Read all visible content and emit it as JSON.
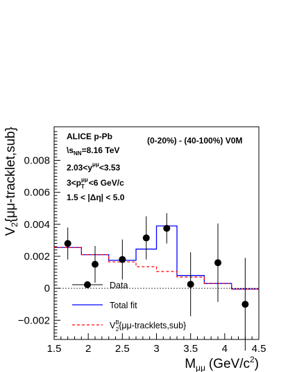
{
  "chart_data": {
    "type": "scatter",
    "xlabel": "M",
    "xlabel_subscript": "μμ",
    "xlabel_unit": "(GeV/c",
    "xlabel_unit_sup": "2",
    "xlabel_unit_end": ")",
    "ylabel": "V",
    "ylabel_subscript": "2",
    "ylabel_rest": "{μμ-tracklet,sub}",
    "xlim": [
      1.5,
      4.5
    ],
    "ylim": [
      -0.0032,
      0.0101
    ],
    "x_ticks": [
      "1.5",
      "2",
      "2.5",
      "3",
      "3.5",
      "4",
      "4.5"
    ],
    "y_ticks": [
      "−0.002",
      "0",
      "0.002",
      "0.004",
      "0.006",
      "0.008"
    ],
    "grid": false,
    "zero_line": "dotted",
    "annotations": {
      "experiment": "ALICE p-Pb",
      "energy": "\\sqrt{s_NN}=8.16 TeV",
      "energy_sqrt": "\\",
      "energy_s": "s",
      "energy_nn": "NN",
      "energy_rest": "=8.16 TeV",
      "rapidity_pre": "2.03<y",
      "rapidity_sup": "μμ",
      "rapidity_post": "<3.53",
      "pt_pre": "3<p",
      "pt_sup": "μμ",
      "pt_sub": "T",
      "pt_post": "<6 GeV/c",
      "eta": "1.5 < |Δη| < 5.0",
      "centrality": "(0-20%) - (40-100%) V0M"
    },
    "series": [
      {
        "name": "Data",
        "style": "markers-with-errors",
        "color": "#000000",
        "x": [
          1.7,
          2.1,
          2.5,
          2.85,
          3.15,
          3.5,
          3.9,
          4.3
        ],
        "y": [
          0.0028,
          0.0015,
          0.0018,
          0.00315,
          0.00375,
          0.00025,
          0.0016,
          -0.001
        ],
        "y_err": [
          0.001,
          0.00115,
          0.00125,
          0.00135,
          0.00095,
          0.002,
          0.00245,
          0.0029
        ]
      },
      {
        "name": "Total fit",
        "style": "step",
        "color": "#0000ff",
        "bin_edges": [
          1.5,
          1.9,
          2.3,
          2.7,
          3.0,
          3.3,
          3.7,
          4.1,
          4.5
        ],
        "values": [
          0.00255,
          0.0021,
          0.00175,
          0.00245,
          0.0039,
          0.0008,
          0.0003,
          -5e-05
        ]
      },
      {
        "name": "V2B{μμ-tracklets,sub}",
        "legend_main": "V",
        "legend_sup": "B",
        "legend_sub": "2",
        "legend_rest": "{μμ-tracklets,sub}",
        "style": "dashed-step",
        "color": "#ff0000",
        "bin_edges": [
          1.5,
          1.9,
          2.3,
          2.7,
          3.0,
          3.3,
          3.7,
          4.1,
          4.5
        ],
        "values": [
          0.00255,
          0.0021,
          0.00165,
          0.00135,
          0.00105,
          0.0007,
          0.0003,
          -5e-05
        ]
      }
    ],
    "legend": {
      "placement": "bottom-left",
      "entries": [
        "Data",
        "Total fit",
        "V2B{μμ-tracklets,sub}"
      ]
    }
  }
}
